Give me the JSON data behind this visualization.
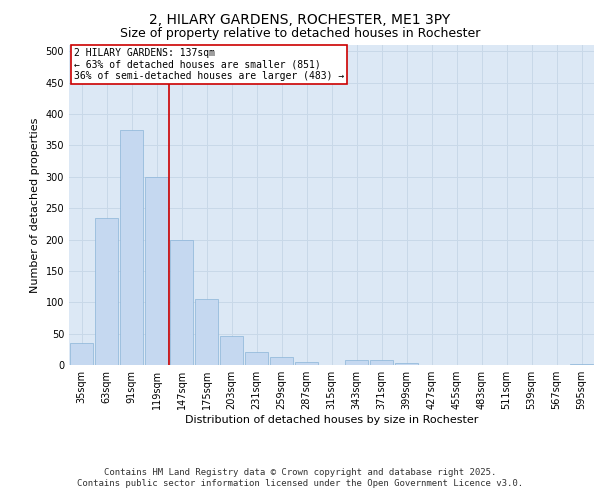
{
  "title_line1": "2, HILARY GARDENS, ROCHESTER, ME1 3PY",
  "title_line2": "Size of property relative to detached houses in Rochester",
  "xlabel": "Distribution of detached houses by size in Rochester",
  "ylabel": "Number of detached properties",
  "categories": [
    "35sqm",
    "63sqm",
    "91sqm",
    "119sqm",
    "147sqm",
    "175sqm",
    "203sqm",
    "231sqm",
    "259sqm",
    "287sqm",
    "315sqm",
    "343sqm",
    "371sqm",
    "399sqm",
    "427sqm",
    "455sqm",
    "483sqm",
    "511sqm",
    "539sqm",
    "567sqm",
    "595sqm"
  ],
  "values": [
    35,
    235,
    375,
    300,
    200,
    105,
    47,
    20,
    12,
    4,
    0,
    8,
    8,
    3,
    0,
    0,
    0,
    0,
    0,
    0,
    2
  ],
  "bar_color": "#c5d8f0",
  "bar_edge_color": "#8ab4d8",
  "vline_color": "#cc0000",
  "annotation_text": "2 HILARY GARDENS: 137sqm\n← 63% of detached houses are smaller (851)\n36% of semi-detached houses are larger (483) →",
  "annotation_box_facecolor": "#ffffff",
  "annotation_box_edgecolor": "#cc0000",
  "ylim": [
    0,
    510
  ],
  "yticks": [
    0,
    50,
    100,
    150,
    200,
    250,
    300,
    350,
    400,
    450,
    500
  ],
  "grid_color": "#c8d8e8",
  "background_color": "#dce8f5",
  "title1_fontsize": 10,
  "title2_fontsize": 9,
  "axis_label_fontsize": 8,
  "tick_fontsize": 7,
  "annotation_fontsize": 7,
  "footer_fontsize": 6.5,
  "footer_line1": "Contains HM Land Registry data © Crown copyright and database right 2025.",
  "footer_line2": "Contains public sector information licensed under the Open Government Licence v3.0."
}
